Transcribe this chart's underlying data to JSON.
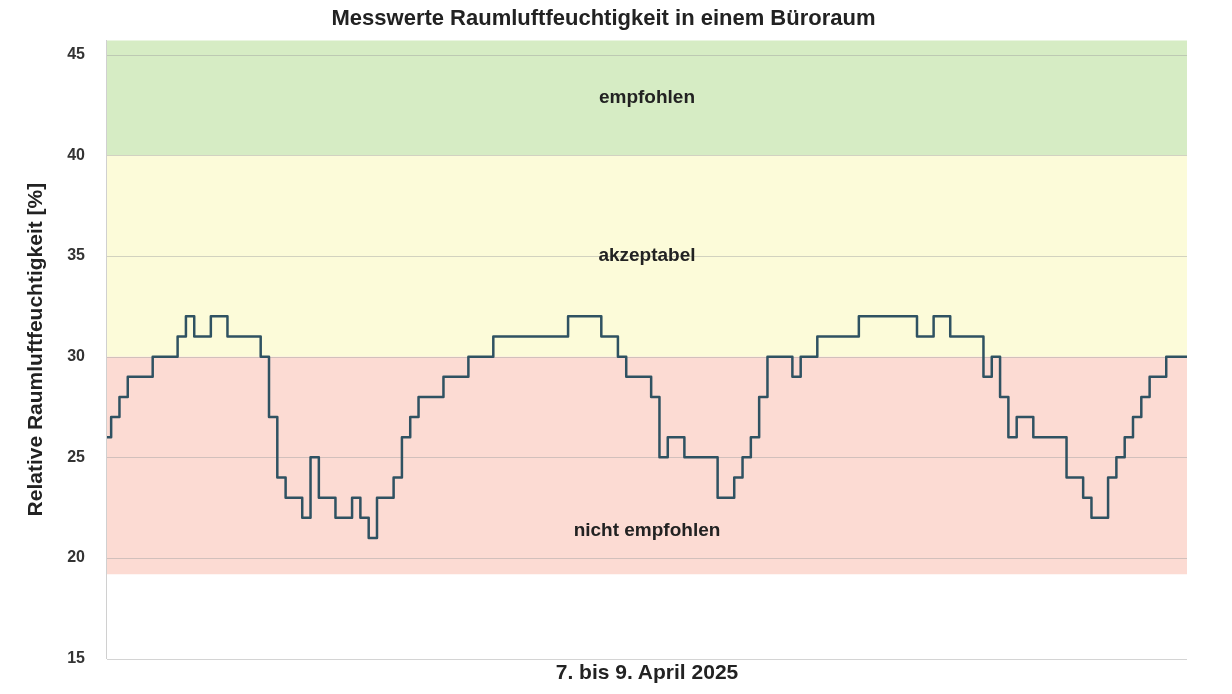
{
  "chart_data": {
    "type": "step",
    "title": "Messwerte Raumluftfeuchtigkeit in einem Büroraum",
    "xlabel": "7. bis 9. April 2025",
    "ylabel": "Relative Raumluftfeuchtigkeit [%]",
    "categories": [
      null,
      null,
      null,
      null,
      null,
      null,
      null,
      null,
      null,
      null,
      null,
      null,
      null,
      null,
      null,
      null,
      null,
      null,
      null,
      null,
      null,
      null,
      null,
      null,
      null,
      null,
      null,
      null,
      null,
      null,
      null,
      null,
      null,
      null,
      null,
      null,
      null,
      null,
      null,
      null,
      null,
      null,
      null,
      null,
      null,
      null,
      null,
      null,
      null,
      null,
      null,
      null,
      null,
      null,
      null,
      null,
      null,
      null,
      null,
      null,
      null,
      null,
      null,
      null,
      null,
      null,
      null,
      null,
      null,
      null,
      null,
      null,
      null,
      null,
      null,
      null,
      null,
      null,
      null,
      null,
      null,
      null,
      null,
      null,
      null,
      null,
      null,
      null,
      null,
      null,
      null,
      null,
      null,
      null,
      null,
      null,
      null,
      null,
      null,
      null,
      null,
      null,
      null,
      null,
      null,
      null,
      null,
      null,
      null,
      null,
      null,
      null,
      null,
      null,
      null,
      null,
      null,
      null,
      null,
      null,
      null,
      null,
      null,
      null,
      null,
      null,
      null,
      null,
      null,
      null,
      null
    ],
    "series": [
      {
        "color": "#2f5262",
        "values": [
          26,
          27,
          28,
          29,
          29,
          29,
          30,
          30,
          30,
          31,
          32,
          31,
          31,
          32,
          32,
          31,
          31,
          31,
          31,
          30,
          27,
          24,
          23,
          23,
          22,
          25,
          23,
          23,
          22,
          22,
          23,
          22,
          21,
          23,
          23,
          24,
          26,
          27,
          28,
          28,
          28,
          29,
          29,
          29,
          30,
          30,
          30,
          31,
          31,
          31,
          31,
          31,
          31,
          31,
          31,
          31,
          32,
          32,
          32,
          32,
          31,
          31,
          30,
          29,
          29,
          29,
          28,
          25,
          26,
          26,
          25,
          25,
          25,
          25,
          23,
          23,
          24,
          25,
          26,
          28,
          30,
          30,
          30,
          29,
          30,
          30,
          31,
          31,
          31,
          31,
          31,
          32,
          32,
          32,
          32,
          32,
          32,
          32,
          31,
          31,
          32,
          32,
          31,
          31,
          31,
          31,
          29,
          30,
          28,
          26,
          27,
          27,
          26,
          26,
          26,
          26,
          24,
          24,
          23,
          22,
          22,
          24,
          25,
          26,
          27,
          28,
          29,
          29,
          30,
          30,
          30
        ]
      }
    ],
    "ylim": [
      15,
      45.7
    ],
    "yticks": [
      15,
      20,
      25,
      30,
      35,
      40,
      45
    ],
    "grid": "y",
    "legend": false,
    "bands": [
      {
        "axis": "y",
        "from": 40,
        "to": 45.7,
        "label": "empfohlen",
        "color": "#d6ecc4"
      },
      {
        "axis": "y",
        "from": 30,
        "to": 40,
        "label": "akzeptabel",
        "color": "#fcfbd9"
      },
      {
        "axis": "y",
        "from": 19.2,
        "to": 30,
        "label": "nicht empfohlen",
        "color": "#fcdbd3"
      }
    ]
  }
}
